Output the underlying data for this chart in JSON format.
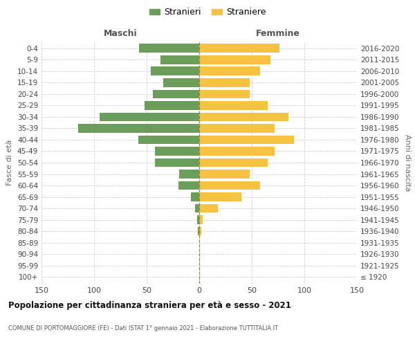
{
  "age_groups": [
    "100+",
    "95-99",
    "90-94",
    "85-89",
    "80-84",
    "75-79",
    "70-74",
    "65-69",
    "60-64",
    "55-59",
    "50-54",
    "45-49",
    "40-44",
    "35-39",
    "30-34",
    "25-29",
    "20-24",
    "15-19",
    "10-14",
    "5-9",
    "0-4"
  ],
  "birth_years": [
    "≤ 1920",
    "1921-1925",
    "1926-1930",
    "1931-1935",
    "1936-1940",
    "1941-1945",
    "1946-1950",
    "1951-1955",
    "1956-1960",
    "1961-1965",
    "1966-1970",
    "1971-1975",
    "1976-1980",
    "1981-1985",
    "1986-1990",
    "1991-1995",
    "1996-2000",
    "2001-2005",
    "2006-2010",
    "2011-2015",
    "2016-2020"
  ],
  "maschi": [
    0,
    0,
    0,
    0,
    1,
    2,
    4,
    8,
    20,
    19,
    42,
    42,
    58,
    115,
    95,
    52,
    44,
    34,
    46,
    37,
    57
  ],
  "femmine": [
    0,
    0,
    0,
    0,
    2,
    3,
    18,
    40,
    58,
    48,
    65,
    72,
    90,
    72,
    85,
    65,
    48,
    48,
    58,
    68,
    76
  ],
  "color_maschi": "#6a9e5a",
  "color_femmine": "#f5c242",
  "title": "Popolazione per cittadinanza straniera per età e sesso - 2021",
  "subtitle": "COMUNE DI PORTOMAGGIORE (FE) - Dati ISTAT 1° gennaio 2021 - Elaborazione TUTTITALIA.IT",
  "xlabel_left": "Maschi",
  "xlabel_right": "Femmine",
  "ylabel_left": "Fasce di età",
  "ylabel_right": "Anni di nascita",
  "legend_maschi": "Stranieri",
  "legend_femmine": "Straniere",
  "xlim": 150,
  "background_color": "#ffffff",
  "grid_color": "#d0d0d0"
}
